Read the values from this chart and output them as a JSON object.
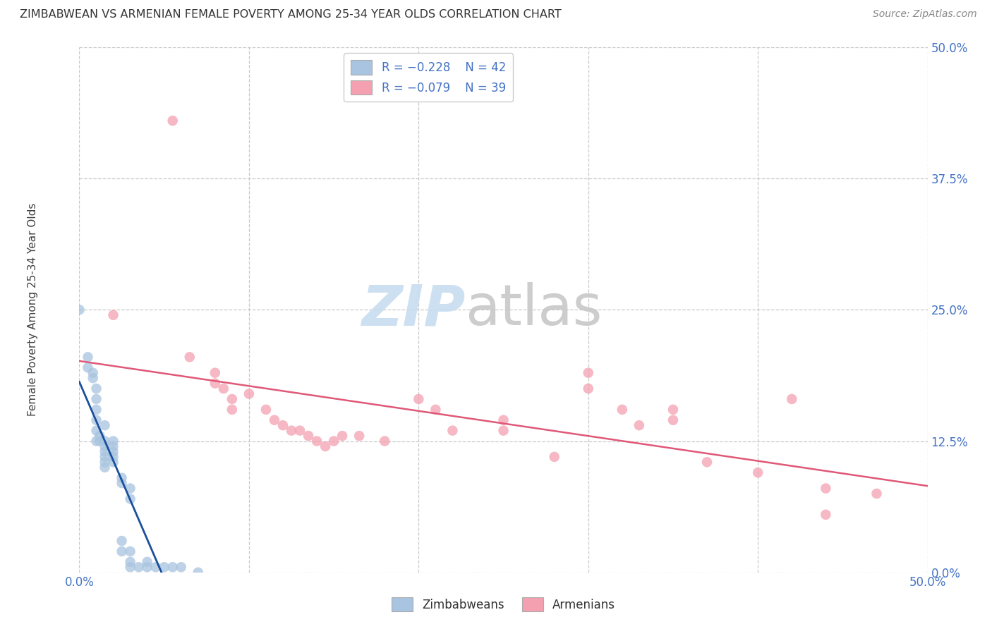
{
  "title": "ZIMBABWEAN VS ARMENIAN FEMALE POVERTY AMONG 25-34 YEAR OLDS CORRELATION CHART",
  "source": "Source: ZipAtlas.com",
  "ylabel": "Female Poverty Among 25-34 Year Olds",
  "ytick_labels": [
    "0.0%",
    "12.5%",
    "25.0%",
    "37.5%",
    "50.0%"
  ],
  "ytick_values": [
    0.0,
    0.125,
    0.25,
    0.375,
    0.5
  ],
  "xlim": [
    0.0,
    0.5
  ],
  "ylim": [
    0.0,
    0.5
  ],
  "legend_r_zimbabwean": "R = −0.228",
  "legend_n_zimbabwean": "N = 42",
  "legend_r_armenian": "R = −0.079",
  "legend_n_armenian": "N = 39",
  "zimbabwean_color": "#a8c4e0",
  "armenian_color": "#f4a0b0",
  "zimbabwean_line_color": "#1a4f9c",
  "armenian_line_color": "#e05878",
  "zimbabwean_scatter": [
    [
      0.0,
      0.25
    ],
    [
      0.005,
      0.205
    ],
    [
      0.005,
      0.195
    ],
    [
      0.008,
      0.19
    ],
    [
      0.008,
      0.185
    ],
    [
      0.01,
      0.175
    ],
    [
      0.01,
      0.165
    ],
    [
      0.01,
      0.155
    ],
    [
      0.01,
      0.145
    ],
    [
      0.01,
      0.135
    ],
    [
      0.01,
      0.125
    ],
    [
      0.012,
      0.13
    ],
    [
      0.012,
      0.125
    ],
    [
      0.015,
      0.14
    ],
    [
      0.015,
      0.125
    ],
    [
      0.015,
      0.12
    ],
    [
      0.015,
      0.115
    ],
    [
      0.015,
      0.11
    ],
    [
      0.015,
      0.105
    ],
    [
      0.015,
      0.1
    ],
    [
      0.02,
      0.125
    ],
    [
      0.02,
      0.12
    ],
    [
      0.02,
      0.115
    ],
    [
      0.02,
      0.11
    ],
    [
      0.02,
      0.105
    ],
    [
      0.025,
      0.09
    ],
    [
      0.025,
      0.085
    ],
    [
      0.025,
      0.03
    ],
    [
      0.025,
      0.02
    ],
    [
      0.03,
      0.08
    ],
    [
      0.03,
      0.07
    ],
    [
      0.03,
      0.02
    ],
    [
      0.03,
      0.01
    ],
    [
      0.03,
      0.005
    ],
    [
      0.035,
      0.005
    ],
    [
      0.04,
      0.01
    ],
    [
      0.04,
      0.005
    ],
    [
      0.045,
      0.005
    ],
    [
      0.05,
      0.005
    ],
    [
      0.055,
      0.005
    ],
    [
      0.06,
      0.005
    ],
    [
      0.07,
      0.0
    ]
  ],
  "armenian_scatter": [
    [
      0.055,
      0.43
    ],
    [
      0.02,
      0.245
    ],
    [
      0.065,
      0.205
    ],
    [
      0.08,
      0.19
    ],
    [
      0.08,
      0.18
    ],
    [
      0.085,
      0.175
    ],
    [
      0.09,
      0.165
    ],
    [
      0.09,
      0.155
    ],
    [
      0.1,
      0.17
    ],
    [
      0.11,
      0.155
    ],
    [
      0.115,
      0.145
    ],
    [
      0.12,
      0.14
    ],
    [
      0.125,
      0.135
    ],
    [
      0.13,
      0.135
    ],
    [
      0.135,
      0.13
    ],
    [
      0.14,
      0.125
    ],
    [
      0.145,
      0.12
    ],
    [
      0.15,
      0.125
    ],
    [
      0.155,
      0.13
    ],
    [
      0.165,
      0.13
    ],
    [
      0.18,
      0.125
    ],
    [
      0.2,
      0.165
    ],
    [
      0.21,
      0.155
    ],
    [
      0.22,
      0.135
    ],
    [
      0.25,
      0.145
    ],
    [
      0.25,
      0.135
    ],
    [
      0.28,
      0.11
    ],
    [
      0.3,
      0.19
    ],
    [
      0.3,
      0.175
    ],
    [
      0.32,
      0.155
    ],
    [
      0.33,
      0.14
    ],
    [
      0.35,
      0.155
    ],
    [
      0.35,
      0.145
    ],
    [
      0.37,
      0.105
    ],
    [
      0.4,
      0.095
    ],
    [
      0.42,
      0.165
    ],
    [
      0.44,
      0.08
    ],
    [
      0.44,
      0.055
    ],
    [
      0.47,
      0.075
    ]
  ],
  "background_color": "#ffffff"
}
